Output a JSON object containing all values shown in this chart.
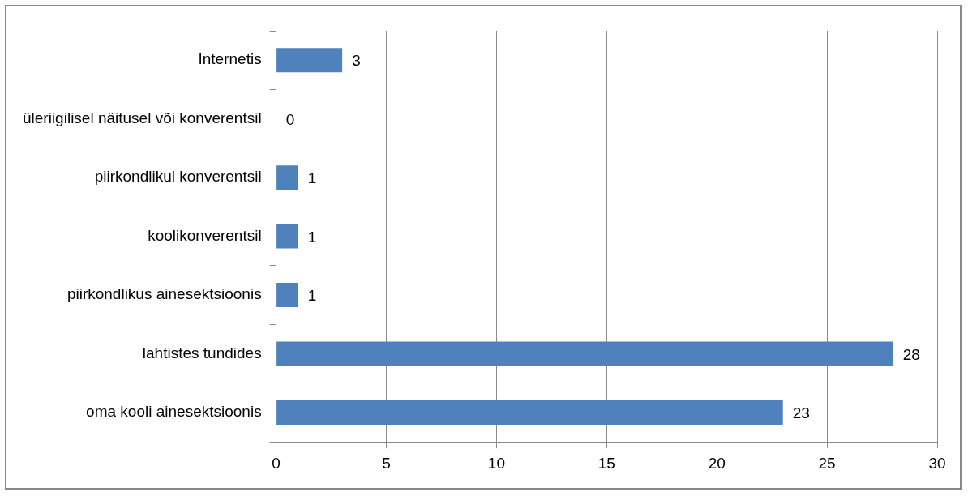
{
  "chart_data": {
    "type": "bar",
    "orientation": "horizontal",
    "categories": [
      "Internetis",
      "üleriigilisel näitusel või konverentsil",
      "piirkondlikul konverentsil",
      "koolikonverentsil",
      "piirkondlikus ainesektsioonis",
      "lahtistes tundides",
      "oma kooli ainesektsioonis"
    ],
    "values": [
      3,
      0,
      1,
      1,
      1,
      28,
      23
    ],
    "color": "#4f81bd",
    "xlim": [
      0,
      30
    ],
    "xticks": [
      0,
      5,
      10,
      15,
      20,
      25,
      30
    ],
    "grid": "x",
    "data_labels": true,
    "legend": false
  }
}
